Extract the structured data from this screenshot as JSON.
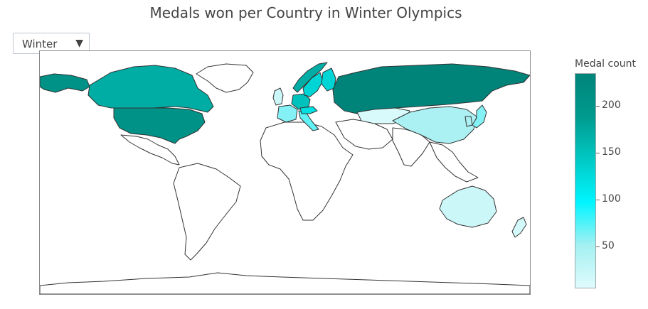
{
  "title": "Medals won per Country in Winter Olympics",
  "dropdown": {
    "selected": "Winter",
    "caret": "▼"
  },
  "colorbar": {
    "title": "Medal count",
    "min": 5,
    "max": 235,
    "ticks": [
      {
        "value": 200,
        "label": "200"
      },
      {
        "value": 150,
        "label": "150"
      },
      {
        "value": 100,
        "label": "100"
      },
      {
        "value": 50,
        "label": "50"
      }
    ],
    "colors": [
      "#e0fbfc",
      "#a3f0f2",
      "#00f5ff",
      "#00c9c4",
      "#009a8e",
      "#00847a"
    ]
  },
  "colors": {
    "no_data": "#ffffff",
    "border": "#333333"
  },
  "countries": [
    {
      "name": "Canada",
      "medals": 170
    },
    {
      "name": "Greenland",
      "medals": null
    },
    {
      "name": "United States",
      "medals": 205
    },
    {
      "name": "Alaska (United States)",
      "medals": 205
    },
    {
      "name": "Mexico",
      "medals": null
    },
    {
      "name": "South America",
      "medals": null
    },
    {
      "name": "Norway",
      "medals": 170
    },
    {
      "name": "Sweden",
      "medals": 130
    },
    {
      "name": "Finland",
      "medals": 130
    },
    {
      "name": "Germany",
      "medals": 150
    },
    {
      "name": "Austria",
      "medals": 120
    },
    {
      "name": "Italy",
      "medals": 70
    },
    {
      "name": "France",
      "medals": 60
    },
    {
      "name": "Great Britain",
      "medals": 20
    },
    {
      "name": "Russia",
      "medals": 235
    },
    {
      "name": "Kazakhstan",
      "medals": 10
    },
    {
      "name": "China",
      "medals": 45
    },
    {
      "name": "Japan",
      "medals": 60
    },
    {
      "name": "Korea",
      "medals": 45
    },
    {
      "name": "Australia",
      "medals": 20
    },
    {
      "name": "New Zealand",
      "medals": 15
    },
    {
      "name": "Africa",
      "medals": null
    },
    {
      "name": "Middle East",
      "medals": null
    },
    {
      "name": "India",
      "medals": null
    },
    {
      "name": "Southeast Asia",
      "medals": null
    },
    {
      "name": "Antarctica",
      "medals": null
    }
  ]
}
